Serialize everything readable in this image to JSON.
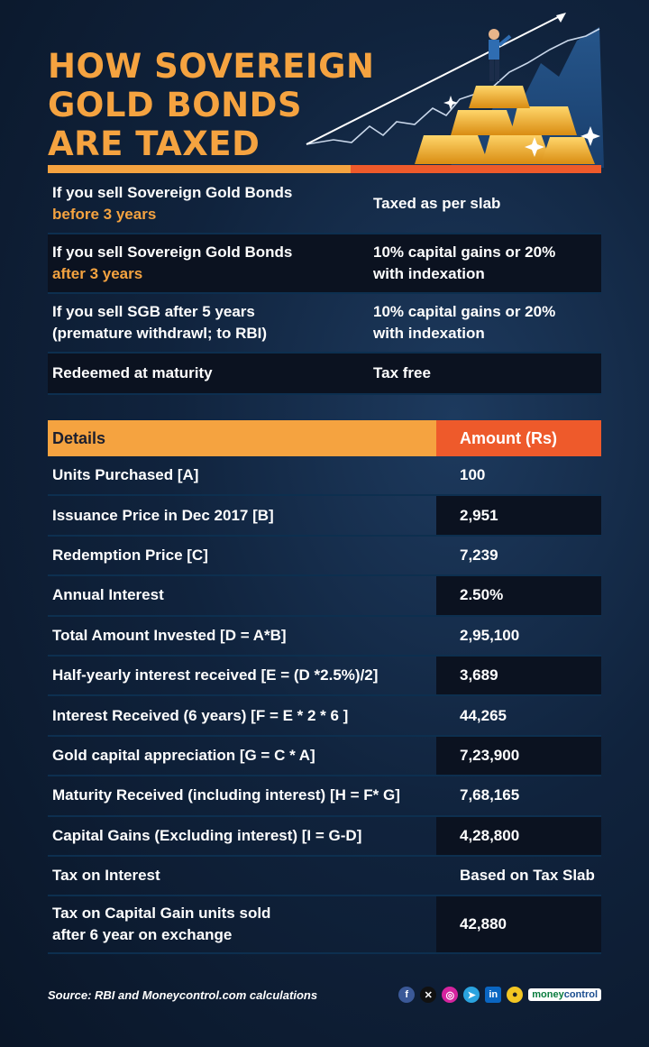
{
  "title": {
    "line1": "HOW SOVEREIGN",
    "line2": "GOLD BONDS",
    "line3": "ARE TAXED"
  },
  "colors": {
    "orange": "#f5a340",
    "red": "#ee5a2b",
    "background": "#10233d"
  },
  "tax_rules": [
    {
      "condition_line1": "If you sell Sovereign Gold Bonds",
      "condition_line2": "before 3 years",
      "treatment_line1": "Taxed as per slab",
      "treatment_line2": ""
    },
    {
      "condition_line1": "If you sell Sovereign Gold Bonds",
      "condition_line2": "after 3 years",
      "treatment_line1": "10% capital gains or 20%",
      "treatment_line2": "with indexation"
    },
    {
      "condition_line1": "If you sell SGB after 5 years",
      "condition_line2": "(premature withdrawl; to RBI)",
      "treatment_line1": "10% capital gains or 20%",
      "treatment_line2": "with indexation"
    },
    {
      "condition_line1": "Redeemed at maturity",
      "condition_line2": "",
      "treatment_line1": "Tax free",
      "treatment_line2": ""
    }
  ],
  "details_table": {
    "headers": {
      "details": "Details",
      "amount": "Amount (Rs)"
    },
    "rows": [
      {
        "label": "Units Purchased  [A]",
        "value": "100"
      },
      {
        "label": "Issuance Price in Dec 2017 [B]",
        "value": "2,951"
      },
      {
        "label": "Redemption Price [C]",
        "value": "7,239"
      },
      {
        "label": "Annual Interest",
        "value": "2.50%"
      },
      {
        "label": "Total Amount Invested [D = A*B]",
        "value": "2,95,100"
      },
      {
        "label": "Half-yearly interest received [E = (D *2.5%)/2]",
        "value": "3,689"
      },
      {
        "label": "Interest Received (6 years) [F = E * 2 * 6 ]",
        "value": "44,265"
      },
      {
        "label": "Gold capital appreciation [G = C * A]",
        "value": "7,23,900"
      },
      {
        "label": "Maturity Received (including interest) [H = F* G]",
        "value": "7,68,165"
      },
      {
        "label": "Capital Gains (Excluding interest) [I = G-D]",
        "value": "4,28,800"
      },
      {
        "label": "Tax on Interest",
        "value": "Based on Tax Slab"
      },
      {
        "label": "Tax on Capital Gain units sold after 6 year on exchange",
        "label_line1": "Tax on Capital Gain units sold",
        "label_line2": "after 6 year on exchange",
        "value": "42,880"
      }
    ]
  },
  "footer": {
    "source": "Source: RBI and Moneycontrol.com calculations",
    "social_icons": [
      "facebook-icon",
      "x-icon",
      "instagram-icon",
      "telegram-icon",
      "linkedin-icon",
      "koo-icon"
    ],
    "brand_part1": "money",
    "brand_part2": "control"
  }
}
